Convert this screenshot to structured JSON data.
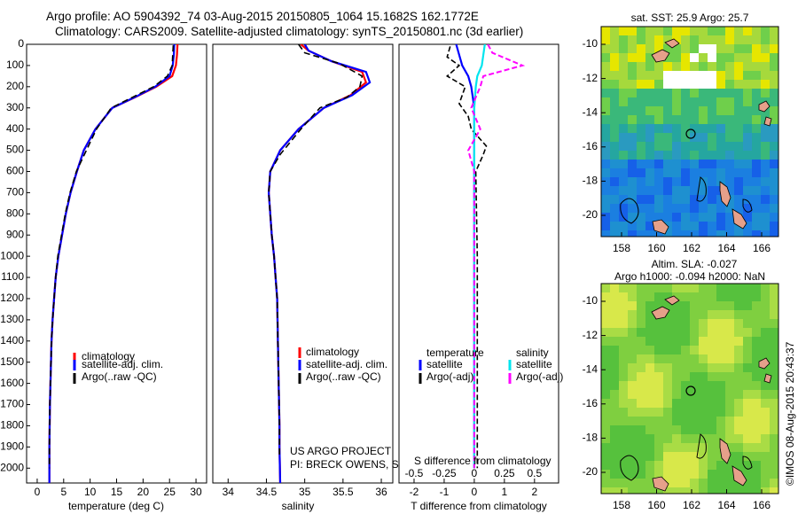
{
  "header": {
    "line1": "Argo profile: AO 5904392_74 03-Aug-2015 20150805_1064 15.1682S 162.1772E",
    "line2": "Climatology: CARS2009. Satellite-adjusted climatology: synTS_20150801.nc (3d earlier)"
  },
  "panels": {
    "temperature": {
      "xlabel": "temperature (deg C)",
      "xticks": [
        "0",
        "5",
        "10",
        "15",
        "20",
        "25",
        "30"
      ],
      "legend": [
        "climatology",
        "satellite-adj. clim.",
        "Argo(..raw -QC)"
      ]
    },
    "salinity": {
      "xlabel": "salinity",
      "xticks": [
        "34",
        "34.5",
        "35",
        "35.5",
        "36"
      ],
      "legend": [
        "climatology",
        "satellite-adj. clim.",
        "Argo(..raw -QC)"
      ],
      "credit1": "US ARGO PROJECT",
      "credit2": "PI: BRECK OWENS, STEVE JAYNE, P.E. ROBBINS"
    },
    "difference": {
      "xlabel": "T difference from climatology",
      "toplabel": "S difference from climatology",
      "xticks": [
        "-2",
        "-1",
        "0",
        "1",
        "2"
      ],
      "sticks": [
        "-0.5",
        "-0.25",
        "0",
        "0.25",
        "0.5"
      ],
      "legend_head": [
        "temperature",
        "salinity"
      ],
      "legend_t": [
        "satellite",
        "Argo(-adj)"
      ],
      "legend_s": [
        "satellite",
        "Argo(-adj)"
      ]
    }
  },
  "depth_ticks": [
    "0",
    "100",
    "200",
    "300",
    "400",
    "500",
    "600",
    "700",
    "800",
    "900",
    "1000",
    "1100",
    "1200",
    "1300",
    "1400",
    "1500",
    "1600",
    "1700",
    "1800",
    "1900",
    "2000"
  ],
  "maps": {
    "sst_title": "sat. SST: 25.9 Argo: 25.7",
    "sla_title1": "Altim. SLA: -0.027",
    "sla_title2": "Argo h1000: -0.094 h2000: NaN",
    "lat_ticks": [
      "-10",
      "-12",
      "-14",
      "-16",
      "-18",
      "-20"
    ],
    "lon_ticks": [
      "158",
      "160",
      "162",
      "164",
      "166"
    ]
  },
  "footer": "©IMOS 08-Aug-2015 20:43:37",
  "colors": {
    "climatology": "#ff0000",
    "satellite": "#0000ff",
    "argo": "#000000",
    "sat_salinity": "#00e5ee",
    "argo_salinity": "#ff00ff"
  },
  "chart_data": [
    {
      "type": "line",
      "title": "",
      "xlabel": "temperature (deg C)",
      "ylabel": "depth",
      "xlim": [
        -2,
        32
      ],
      "ylim": [
        2070,
        0
      ],
      "series": [
        {
          "name": "climatology",
          "x": [
            26.5,
            26.4,
            26.2,
            25.5,
            22.5,
            18.5,
            14.2,
            11.0,
            8.8,
            7.5,
            6.3,
            5.4,
            4.7,
            4.0,
            3.5,
            3.2,
            2.9,
            2.7,
            2.6,
            2.5,
            2.4,
            2.3,
            2.3
          ],
          "y": [
            0,
            50,
            100,
            150,
            200,
            250,
            300,
            400,
            500,
            600,
            700,
            800,
            900,
            1000,
            1100,
            1200,
            1300,
            1400,
            1500,
            1600,
            1700,
            1900,
            2070
          ]
        },
        {
          "name": "satellite-adj. clim.",
          "x": [
            25.9,
            25.8,
            25.6,
            25.0,
            22.3,
            18.4,
            14.2,
            11.0,
            8.8,
            7.5,
            6.3,
            5.4,
            4.7,
            4.0,
            3.5,
            3.2,
            2.9,
            2.7,
            2.6,
            2.5,
            2.4,
            2.3,
            2.3
          ],
          "y": [
            0,
            50,
            100,
            150,
            200,
            250,
            300,
            400,
            500,
            600,
            700,
            800,
            900,
            1000,
            1100,
            1200,
            1300,
            1400,
            1500,
            1600,
            1700,
            1900,
            2070
          ]
        },
        {
          "name": "Argo(..raw -QC)",
          "x": [
            25.7,
            25.6,
            25.5,
            24.6,
            22.0,
            18.0,
            14.0,
            11.2,
            9.1,
            7.4,
            6.2,
            5.3,
            4.6,
            3.9,
            3.5,
            3.2,
            2.9,
            2.7,
            2.6,
            2.5,
            2.4,
            2.3,
            2.3
          ],
          "y": [
            5,
            50,
            100,
            150,
            200,
            250,
            300,
            400,
            510,
            600,
            700,
            800,
            900,
            1000,
            1100,
            1200,
            1300,
            1400,
            1500,
            1600,
            1700,
            1900,
            2000
          ]
        }
      ]
    },
    {
      "type": "line",
      "title": "",
      "xlabel": "salinity",
      "ylabel": "depth",
      "xlim": [
        33.8,
        36.15
      ],
      "ylim": [
        2070,
        0
      ],
      "series": [
        {
          "name": "climatology",
          "x": [
            34.95,
            35.05,
            35.35,
            35.75,
            35.8,
            35.6,
            35.25,
            34.92,
            34.68,
            34.55,
            34.53,
            34.55,
            34.57,
            34.6,
            34.62,
            34.64,
            34.65,
            34.66,
            34.67,
            34.67,
            34.68
          ],
          "y": [
            0,
            30,
            80,
            130,
            180,
            240,
            300,
            400,
            500,
            600,
            700,
            800,
            900,
            1000,
            1100,
            1200,
            1400,
            1600,
            1800,
            1900,
            2070
          ]
        },
        {
          "name": "satellite-adj. clim.",
          "x": [
            35.0,
            35.05,
            35.35,
            35.8,
            35.85,
            35.62,
            35.25,
            34.92,
            34.68,
            34.55,
            34.53,
            34.55,
            34.57,
            34.6,
            34.62,
            34.64,
            34.65,
            34.66,
            34.67,
            34.67,
            34.68
          ],
          "y": [
            0,
            30,
            80,
            130,
            180,
            240,
            300,
            400,
            500,
            600,
            700,
            800,
            900,
            1000,
            1100,
            1200,
            1400,
            1600,
            1800,
            1900,
            2070
          ]
        },
        {
          "name": "Argo(..raw -QC)",
          "x": [
            34.92,
            35.0,
            35.45,
            35.75,
            35.72,
            35.55,
            35.2,
            34.95,
            34.68,
            34.55,
            34.53,
            34.55,
            34.57,
            34.6,
            34.62,
            34.64,
            34.65,
            34.66,
            34.67,
            34.67
          ],
          "y": [
            0,
            40,
            90,
            150,
            200,
            250,
            300,
            400,
            520,
            600,
            700,
            800,
            900,
            1000,
            1100,
            1200,
            1400,
            1600,
            1800,
            1950
          ]
        }
      ]
    },
    {
      "type": "line",
      "title": "",
      "xlabel": "T difference from climatology",
      "ylabel": "depth",
      "xlim": [
        -2.5,
        2.8
      ],
      "ylim": [
        2070,
        0
      ],
      "series": [
        {
          "name": "satellite",
          "x": [
            -0.6,
            -0.5,
            -0.4,
            -0.2,
            -0.1,
            0.0,
            0.0,
            0.0,
            0.0
          ],
          "y": [
            0,
            50,
            100,
            150,
            200,
            300,
            500,
            1000,
            2000
          ]
        },
        {
          "name": "Argo(-adj)",
          "x": [
            -0.8,
            -0.9,
            -0.5,
            -0.9,
            -0.3,
            -0.5,
            -0.2,
            -0.1,
            0.4,
            0.3,
            0.05,
            0.1,
            0.1,
            0.1
          ],
          "y": [
            10,
            60,
            100,
            150,
            200,
            280,
            340,
            400,
            480,
            520,
            600,
            1000,
            1500,
            2000
          ]
        },
        {
          "name": "satellite",
          "x": [
            0.35,
            0.3,
            0.25,
            0.1,
            0.05,
            0.0,
            0.0,
            0.0,
            0.0
          ],
          "y": [
            0,
            50,
            100,
            150,
            200,
            300,
            500,
            1000,
            2000
          ]
        },
        {
          "name": "Argo(-adj)",
          "x": [
            0.45,
            0.6,
            1.6,
            0.3,
            0.2,
            -0.1,
            0.2,
            -0.2,
            0.0,
            0.0,
            0.0
          ],
          "y": [
            0,
            40,
            100,
            150,
            200,
            300,
            400,
            500,
            600,
            1000,
            2000
          ]
        }
      ]
    }
  ]
}
